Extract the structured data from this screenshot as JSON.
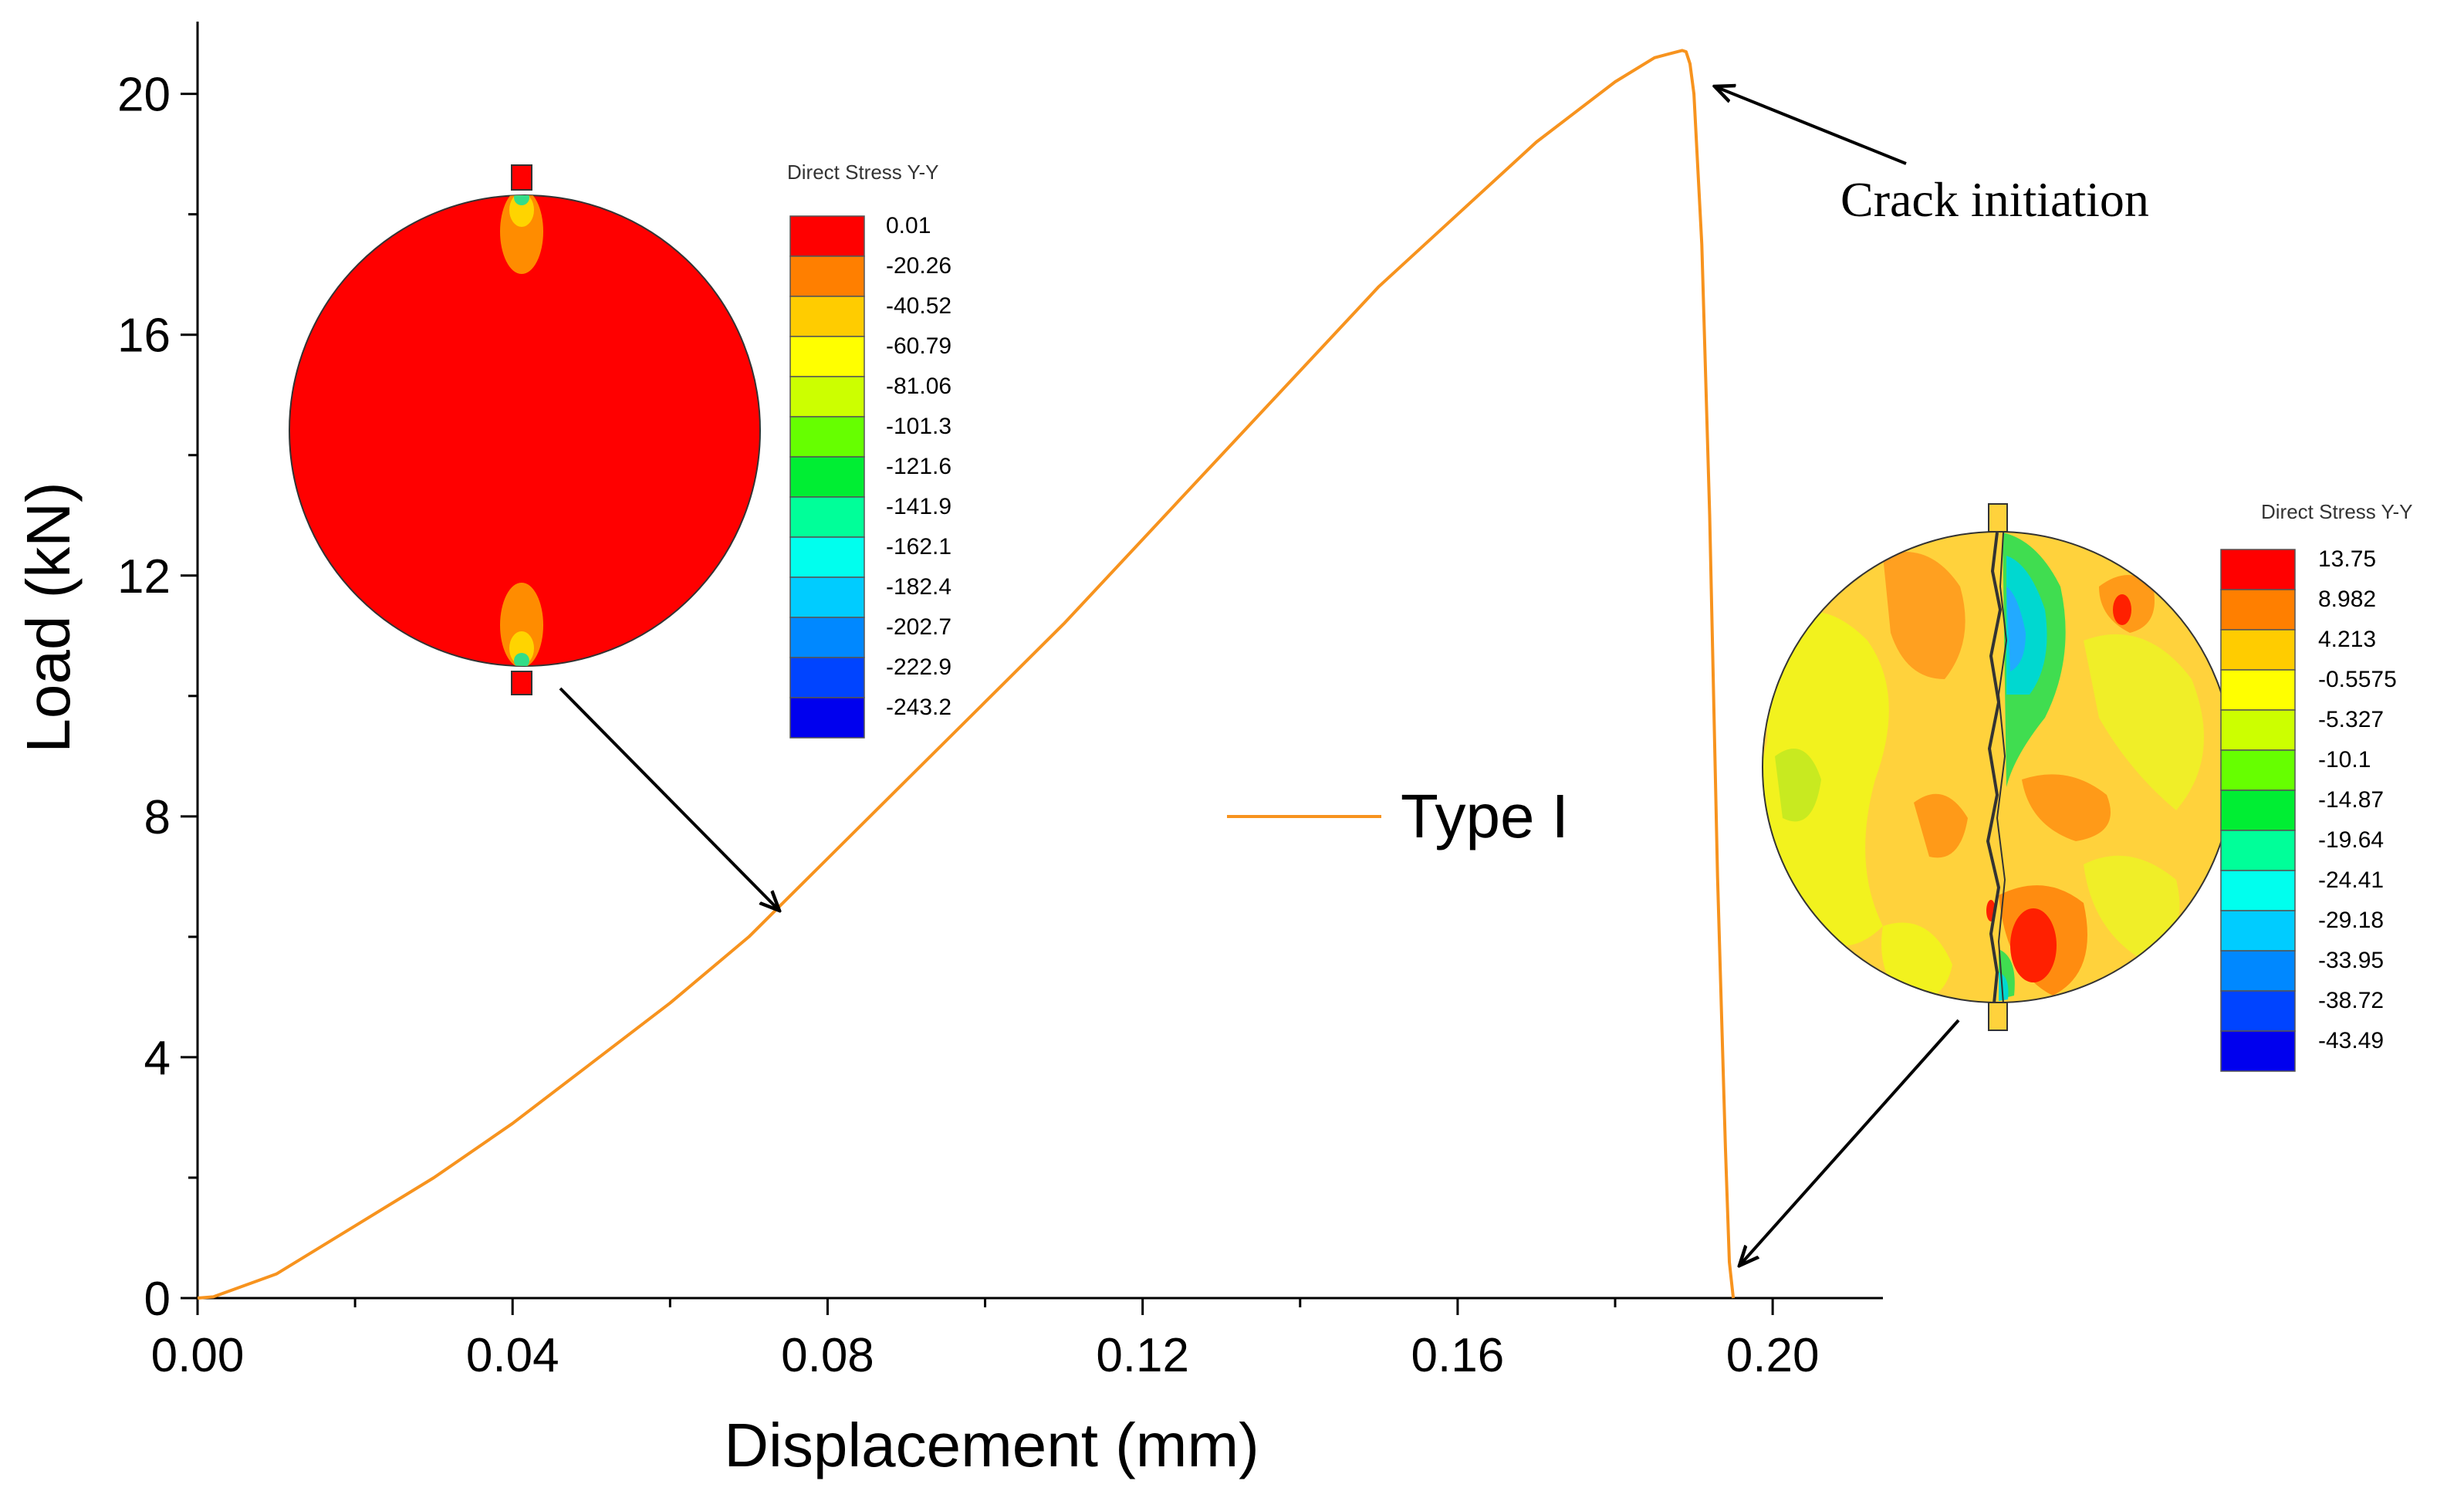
{
  "chart_data": {
    "type": "line",
    "xlabel": "Displacement (mm)",
    "ylabel": "Load (kN)",
    "xlim": [
      0,
      0.214
    ],
    "ylim": [
      0,
      21.2
    ],
    "xticks": [
      "0.00",
      "0.04",
      "0.08",
      "0.12",
      "0.16",
      "0.20"
    ],
    "xtick_values": [
      0,
      0.04,
      0.08,
      0.12,
      0.16,
      0.2
    ],
    "yticks": [
      "0",
      "4",
      "8",
      "12",
      "16",
      "20"
    ],
    "ytick_values": [
      0,
      4,
      8,
      12,
      16,
      20
    ],
    "grid": false,
    "series": [
      {
        "name": "Type I",
        "color": "#f7931e",
        "x": [
          0,
          0.002,
          0.01,
          0.02,
          0.03,
          0.04,
          0.05,
          0.06,
          0.07,
          0.08,
          0.09,
          0.1,
          0.11,
          0.12,
          0.13,
          0.14,
          0.15,
          0.16,
          0.17,
          0.18,
          0.185,
          0.1885,
          0.189,
          0.1895,
          0.19,
          0.191,
          0.192,
          0.193,
          0.194,
          0.1945,
          0.195
        ],
        "y": [
          0,
          0.02,
          0.4,
          1.2,
          2.0,
          2.9,
          3.9,
          4.9,
          6.0,
          7.3,
          8.6,
          9.9,
          11.2,
          12.6,
          14.0,
          15.4,
          16.8,
          18.0,
          19.2,
          20.2,
          20.6,
          20.72,
          20.7,
          20.5,
          20.0,
          17.5,
          13.0,
          7.0,
          2.5,
          0.6,
          0.0
        ]
      }
    ],
    "legend": {
      "label": "Type I",
      "placement": "center"
    },
    "annotations": [
      {
        "text": "Crack initiation",
        "points_to": [
          0.1895,
          20.7
        ]
      }
    ],
    "insets": [
      {
        "name": "initial-state-contour",
        "title": "Direct Stress Y-Y",
        "points_to": [
          0.073,
          6.6
        ],
        "colorbar_labels": [
          "0.01",
          "-20.26",
          "-40.52",
          "-60.79",
          "-81.06",
          "-101.3",
          "-121.6",
          "-141.9",
          "-162.1",
          "-182.4",
          "-202.7",
          "-222.9",
          "-243.2"
        ],
        "colorbar_colors": [
          "#ff0000",
          "#ff7f00",
          "#ffcc00",
          "#ffff00",
          "#ccff00",
          "#66ff00",
          "#00ee33",
          "#00ff99",
          "#00ffee",
          "#00ccff",
          "#0088ff",
          "#0044ff",
          "#0000ee"
        ]
      },
      {
        "name": "post-failure-contour",
        "title": "Direct Stress Y-Y",
        "points_to": [
          0.1945,
          0.5
        ],
        "colorbar_labels": [
          "13.75",
          "8.982",
          "4.213",
          "-0.5575",
          "-5.327",
          "-10.1",
          "-14.87",
          "-19.64",
          "-24.41",
          "-29.18",
          "-33.95",
          "-38.72",
          "-43.49"
        ],
        "colorbar_colors": [
          "#ff0000",
          "#ff7f00",
          "#ffcc00",
          "#ffff00",
          "#ccff00",
          "#66ff00",
          "#00ee33",
          "#00ff99",
          "#00ffee",
          "#00ccff",
          "#0088ff",
          "#0044ff",
          "#0000ee"
        ]
      }
    ]
  }
}
